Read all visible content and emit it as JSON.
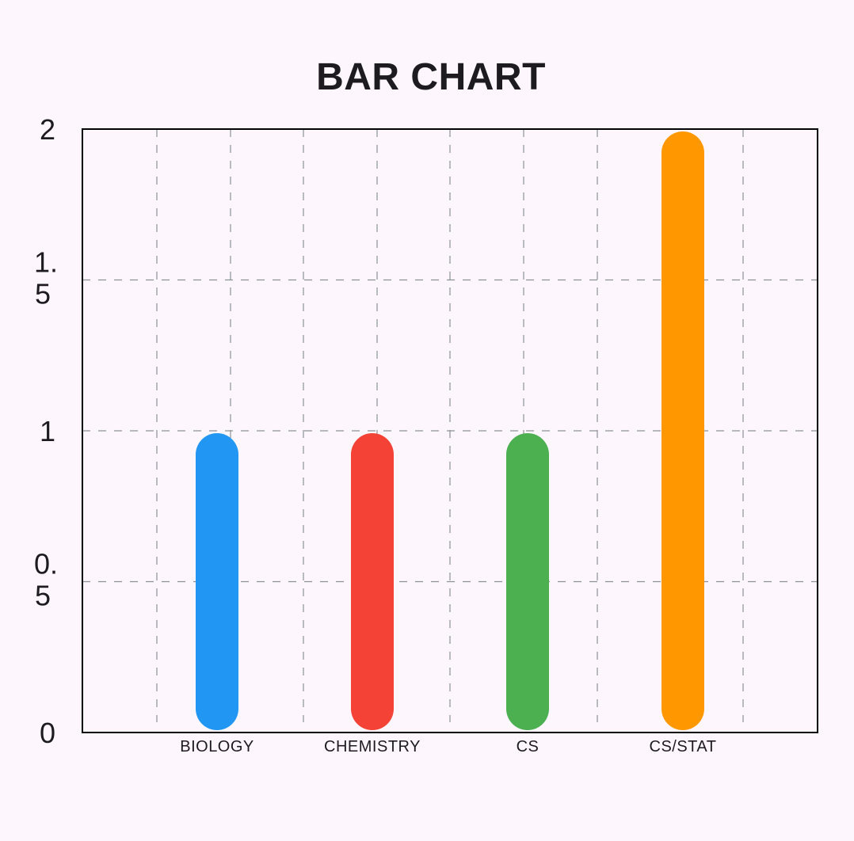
{
  "chart_data": {
    "type": "bar",
    "title": "BAR CHART",
    "xlabel": "",
    "ylabel": "",
    "categories": [
      "BIOLOGY",
      "CHEMISTRY",
      "CS",
      "CS/STAT"
    ],
    "values": [
      1,
      1,
      1,
      2
    ],
    "colors": [
      "#2196f3",
      "#f44336",
      "#4caf50",
      "#ff9800"
    ],
    "ylim": [
      0,
      2
    ],
    "yticks": [
      {
        "value": 0,
        "lines": [
          "0"
        ]
      },
      {
        "value": 0.5,
        "lines": [
          "0.",
          "5"
        ]
      },
      {
        "value": 1,
        "lines": [
          "1"
        ]
      },
      {
        "value": 1.5,
        "lines": [
          "1.",
          "5"
        ]
      },
      {
        "value": 2,
        "lines": [
          "2"
        ]
      }
    ],
    "grid": true,
    "grid_style": "dashed",
    "grid_color": "#8a9296",
    "bar_shape": "rounded"
  }
}
